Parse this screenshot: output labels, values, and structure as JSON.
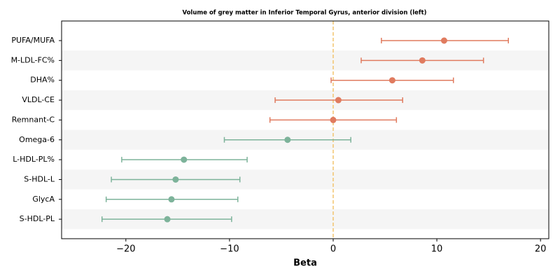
{
  "chart_data": {
    "type": "forest",
    "title": "Volume of grey matter in Inferior Temporal Gyrus, anterior division (left)",
    "xlabel": "Beta",
    "categories": [
      "PUFA/MUFA",
      "M-LDL-FC%",
      "DHA%",
      "VLDL-CE",
      "Remnant-C",
      "Omega-6",
      "L-HDL-PL%",
      "S-HDL-L",
      "GlycA",
      "S-HDL-PL"
    ],
    "values": [
      10.7,
      8.6,
      5.7,
      0.5,
      0.0,
      -4.4,
      -14.4,
      -15.2,
      -15.6,
      -16.0
    ],
    "ci_low": [
      4.65,
      2.7,
      -0.2,
      -5.6,
      -6.1,
      -10.5,
      -20.4,
      -21.4,
      -21.9,
      -22.3
    ],
    "ci_high": [
      16.9,
      14.5,
      11.6,
      6.7,
      6.1,
      1.7,
      -8.3,
      -9.0,
      -9.2,
      -9.8
    ],
    "colors": [
      "#e07b5f",
      "#e07b5f",
      "#e07b5f",
      "#e07b5f",
      "#e07b5f",
      "#7db39a",
      "#7db39a",
      "#7db39a",
      "#7db39a",
      "#7db39a"
    ],
    "xlim": [
      -26.2,
      20.8
    ],
    "xticks": [
      {
        "value": -20,
        "label": "−20"
      },
      {
        "value": -10,
        "label": "−10"
      },
      0,
      10,
      20
    ],
    "reference_line": {
      "value": 0,
      "color": "#f2c46e"
    },
    "row_shading": "#f5f5f5"
  }
}
